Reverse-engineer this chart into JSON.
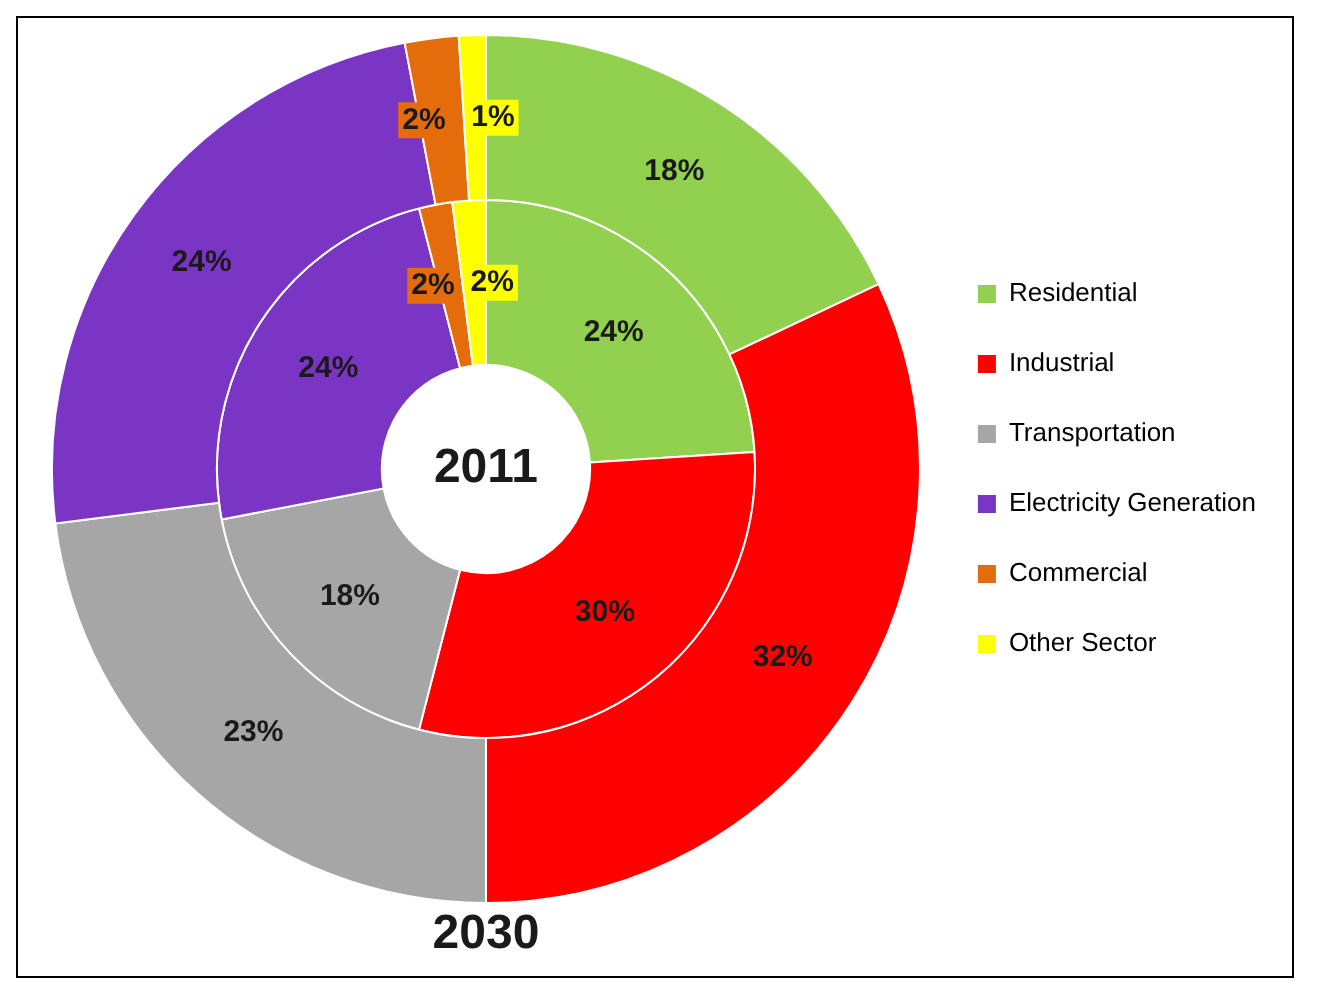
{
  "chart_data": {
    "type": "donut",
    "categories": [
      "Residential",
      "Industrial",
      "Transportation",
      "Electricity Generation",
      "Commercial",
      "Other Sector"
    ],
    "colors": [
      "#92d050",
      "#ff0000",
      "#a6a6a6",
      "#7b35c4",
      "#e46c0a",
      "#ffff00"
    ],
    "series": [
      {
        "name": "2011",
        "values": [
          24,
          30,
          18,
          24,
          2,
          2
        ],
        "value_labels": [
          "24%",
          "30%",
          "18%",
          "24%",
          "2%",
          "2%"
        ]
      },
      {
        "name": "2030",
        "values": [
          18,
          32,
          23,
          24,
          2,
          1
        ],
        "value_labels": [
          "18%",
          "32%",
          "23%",
          "24%",
          "2%",
          "1%"
        ]
      }
    ],
    "legend": "right"
  }
}
